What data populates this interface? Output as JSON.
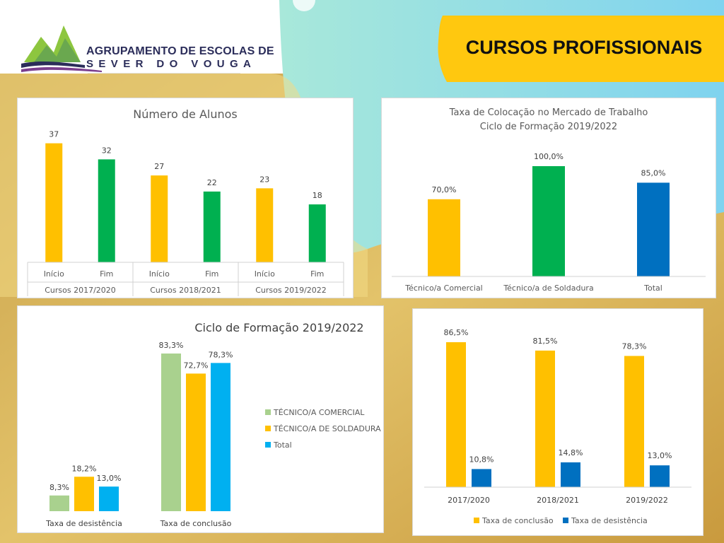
{
  "header": {
    "org_line1": "AGRUPAMENTO DE ESCOLAS DE",
    "org_line2": "SEVER DO VOUGA",
    "banner_title": "CURSOS PROFISSIONAIS"
  },
  "colors": {
    "yellow": "#FFC000",
    "green": "#00B050",
    "blue": "#0070C0",
    "light_green": "#A9D18E",
    "light_blue": "#00B0F0",
    "brand_navy": "#2b2d5a",
    "banner": "#FFC80F",
    "gold_bg": "#C9A44A"
  },
  "chart_data": [
    {
      "type": "bar",
      "title": "Número de Alunos",
      "categories": [
        "Início",
        "Fim",
        "Início",
        "Fim",
        "Início",
        "Fim"
      ],
      "groups": [
        "Cursos 2017/2020",
        "Cursos 2018/2021",
        "Cursos 2019/2022"
      ],
      "values": [
        37,
        32,
        27,
        22,
        23,
        18
      ],
      "bar_colors": [
        "#FFC000",
        "#00B050",
        "#FFC000",
        "#00B050",
        "#FFC000",
        "#00B050"
      ],
      "ylim": [
        0,
        40
      ],
      "grid": false
    },
    {
      "type": "bar",
      "title": "Taxa de Colocação no Mercado de Trabalho",
      "subtitle": "Ciclo de Formação 2019/2022",
      "categories": [
        "Técnico/a Comercial",
        "Técnico/a de Soldadura",
        "Total"
      ],
      "values": [
        70.0,
        100.0,
        85.0
      ],
      "labels": [
        "70,0%",
        "100,0%",
        "85,0%"
      ],
      "bar_colors": [
        "#FFC000",
        "#00B050",
        "#0070C0"
      ],
      "ylim": [
        0,
        110
      ],
      "grid": false
    },
    {
      "type": "bar",
      "title": "Ciclo de Formação 2019/2022",
      "categories": [
        "Taxa de desistência",
        "Taxa de conclusão"
      ],
      "series": [
        {
          "name": "TÉCNICO/A COMERCIAL",
          "color": "#A9D18E",
          "values": [
            8.3,
            83.3
          ],
          "labels": [
            "8,3%",
            "83,3%"
          ]
        },
        {
          "name": "TÉCNICO/A DE SOLDADURA",
          "color": "#FFC000",
          "values": [
            18.2,
            72.7
          ],
          "labels": [
            "18,2%",
            "72,7%"
          ]
        },
        {
          "name": "Total",
          "color": "#00B0F0",
          "values": [
            13.0,
            78.3
          ],
          "labels": [
            "13,0%",
            "78,3%"
          ]
        }
      ],
      "ylim": [
        0,
        90
      ],
      "legend": "right",
      "grid": false
    },
    {
      "type": "bar",
      "categories": [
        "2017/2020",
        "2018/2021",
        "2019/2022"
      ],
      "series": [
        {
          "name": "Taxa de conclusão",
          "color": "#FFC000",
          "values": [
            86.5,
            81.5,
            78.3
          ],
          "labels": [
            "86,5%",
            "81,5%",
            "78,3%"
          ]
        },
        {
          "name": "Taxa de desistência",
          "color": "#0070C0",
          "values": [
            10.8,
            14.8,
            13.0
          ],
          "labels": [
            "10,8%",
            "14,8%",
            "13,0%"
          ]
        }
      ],
      "ylim": [
        0,
        95
      ],
      "legend": "bottom",
      "grid": false
    }
  ]
}
